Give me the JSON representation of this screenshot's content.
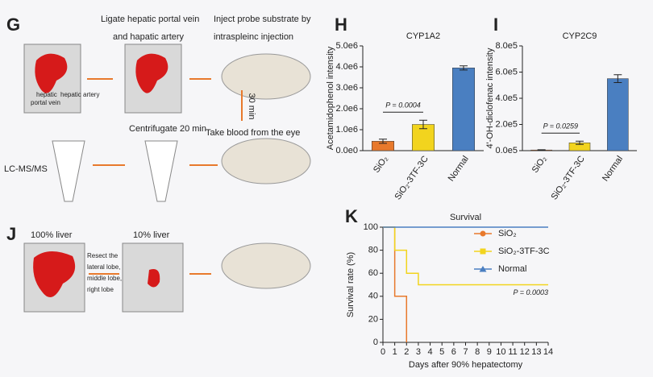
{
  "chart_data": [
    {
      "type": "bar",
      "panel": "H",
      "title": "CYP1A2",
      "ylabel": "Acetamidophenol intensity",
      "categories": [
        "SiO₂",
        "SiO₂-3TF-3C",
        "Normal"
      ],
      "values": [
        450000,
        1250000,
        3950000
      ],
      "errors": [
        100000,
        200000,
        100000
      ],
      "colors": [
        "#e8792c",
        "#f2d41e",
        "#4a7fc1"
      ],
      "ylim": [
        0,
        5000000
      ],
      "yticks": [
        {
          "value": 0,
          "label": "0.0e0"
        },
        {
          "value": 1000000,
          "label": "1.0e6"
        },
        {
          "value": 2000000,
          "label": "2.0e6"
        },
        {
          "value": 3000000,
          "label": "3.0e6"
        },
        {
          "value": 4000000,
          "label": "4.0e6"
        },
        {
          "value": 5000000,
          "label": "5.0e6"
        }
      ],
      "annotation": "P = 0.0004"
    },
    {
      "type": "bar",
      "panel": "I",
      "title": "CYP2C9",
      "ylabel": "4'-OH-diclofenac intensity",
      "categories": [
        "SiO₂",
        "SiO₂-3TF-3C",
        "Normal"
      ],
      "values": [
        5000,
        60000,
        550000
      ],
      "errors": [
        2000,
        12000,
        30000
      ],
      "colors": [
        "#e8792c",
        "#f2d41e",
        "#4a7fc1"
      ],
      "ylim": [
        0,
        800000
      ],
      "yticks": [
        {
          "value": 0,
          "label": "0.0e5"
        },
        {
          "value": 200000,
          "label": "2.0e5"
        },
        {
          "value": 400000,
          "label": "4.0e5"
        },
        {
          "value": 600000,
          "label": "6.0e5"
        },
        {
          "value": 800000,
          "label": "8.0e5"
        }
      ],
      "annotation": "P = 0.0259"
    },
    {
      "type": "line",
      "panel": "K",
      "title": "Survival",
      "xlabel": "Days after 90% hepatectomy",
      "ylabel": "Survival rate (%)",
      "series": [
        {
          "name": "SiO₂",
          "color": "#e8792c",
          "marker": "circle",
          "x": [
            0,
            1,
            1,
            2,
            2
          ],
          "values": [
            100,
            100,
            40,
            40,
            0
          ]
        },
        {
          "name": "SiO₂-3TF-3C",
          "color": "#f2d41e",
          "marker": "square",
          "x": [
            0,
            1,
            1,
            2,
            2,
            3,
            3,
            14
          ],
          "values": [
            100,
            100,
            80,
            80,
            60,
            60,
            50,
            50
          ]
        },
        {
          "name": "Normal",
          "color": "#4a7fc1",
          "marker": "triangle",
          "x": [
            0,
            14
          ],
          "values": [
            100,
            100
          ]
        }
      ],
      "xlim": [
        0,
        14
      ],
      "xticks": [
        0,
        1,
        2,
        3,
        4,
        5,
        6,
        7,
        8,
        9,
        10,
        11,
        12,
        13,
        14
      ],
      "ylim": [
        0,
        100
      ],
      "yticks": [
        0,
        20,
        40,
        60,
        80,
        100
      ],
      "annotation": "P = 0.0003"
    }
  ],
  "diagram": {
    "g": {
      "letter": "G",
      "step1a": "Ligate hepatic portal vein",
      "step1b": "and hapatic artery",
      "step2a": "Inject probe substrate by",
      "step2b": "intraspleinc injection",
      "wait": "30 min",
      "blood": "Take blood from the eye",
      "centrifuge": "Centrifugate 20 min",
      "analysis": "LC-MS/MS",
      "hepatic": "hepatic",
      "portal": "portal vein",
      "artery": "hepatic artery"
    },
    "j": {
      "letter": "J",
      "full": "100% liver",
      "partial": "10% liver",
      "resect": [
        "Resect the",
        "lateral lobe,",
        "middle lobe,",
        "right lobe"
      ]
    }
  }
}
